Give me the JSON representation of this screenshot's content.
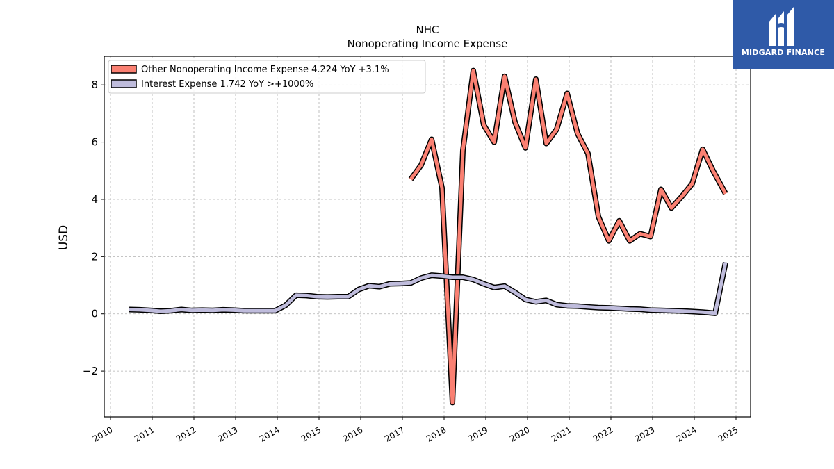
{
  "chart_data": {
    "type": "line",
    "title": "NHC",
    "subtitle": "Nonoperating Income Expense",
    "xlabel": "",
    "ylabel": "USD",
    "xlim": [
      2009.85,
      2025.35
    ],
    "ylim": [
      -3.6,
      9.0
    ],
    "yticks": [
      -2,
      0,
      2,
      4,
      6,
      8
    ],
    "xticks": [
      2010,
      2011,
      2012,
      2013,
      2014,
      2015,
      2016,
      2017,
      2018,
      2019,
      2020,
      2021,
      2022,
      2023,
      2024,
      2025
    ],
    "grid": true,
    "legend_position": "top-left",
    "series": [
      {
        "name": "Other Nonoperating Income Expense",
        "legend_label": "Other Nonoperating Income Expense  4.224 YoY +3.1%",
        "color": "#fa8072",
        "points": [
          [
            2017.2,
            4.7
          ],
          [
            2017.45,
            5.2
          ],
          [
            2017.7,
            6.1
          ],
          [
            2017.95,
            4.4
          ],
          [
            2018.2,
            -3.1
          ],
          [
            2018.45,
            5.7
          ],
          [
            2018.7,
            8.5
          ],
          [
            2018.95,
            6.6
          ],
          [
            2019.2,
            6.0
          ],
          [
            2019.45,
            8.3
          ],
          [
            2019.7,
            6.7
          ],
          [
            2019.95,
            5.8
          ],
          [
            2020.2,
            8.2
          ],
          [
            2020.45,
            5.95
          ],
          [
            2020.7,
            6.45
          ],
          [
            2020.95,
            7.7
          ],
          [
            2021.2,
            6.3
          ],
          [
            2021.45,
            5.6
          ],
          [
            2021.7,
            3.4
          ],
          [
            2021.95,
            2.55
          ],
          [
            2022.2,
            3.25
          ],
          [
            2022.45,
            2.55
          ],
          [
            2022.7,
            2.8
          ],
          [
            2022.95,
            2.7
          ],
          [
            2023.2,
            4.35
          ],
          [
            2023.45,
            3.7
          ],
          [
            2023.7,
            4.1
          ],
          [
            2023.95,
            4.55
          ],
          [
            2024.2,
            5.75
          ],
          [
            2024.45,
            5.0
          ],
          [
            2024.75,
            4.2
          ]
        ]
      },
      {
        "name": "Interest Expense",
        "legend_label": "Interest Expense  1.742 YoY >+1000%",
        "color": "#bfbcdc",
        "points": [
          [
            2010.45,
            0.15
          ],
          [
            2010.7,
            0.14
          ],
          [
            2010.95,
            0.12
          ],
          [
            2011.2,
            0.09
          ],
          [
            2011.45,
            0.11
          ],
          [
            2011.7,
            0.15
          ],
          [
            2011.95,
            0.12
          ],
          [
            2012.2,
            0.13
          ],
          [
            2012.45,
            0.12
          ],
          [
            2012.7,
            0.14
          ],
          [
            2012.95,
            0.13
          ],
          [
            2013.2,
            0.11
          ],
          [
            2013.45,
            0.11
          ],
          [
            2013.7,
            0.11
          ],
          [
            2013.95,
            0.11
          ],
          [
            2014.2,
            0.3
          ],
          [
            2014.45,
            0.65
          ],
          [
            2014.7,
            0.64
          ],
          [
            2014.95,
            0.6
          ],
          [
            2015.2,
            0.59
          ],
          [
            2015.45,
            0.6
          ],
          [
            2015.7,
            0.6
          ],
          [
            2015.95,
            0.85
          ],
          [
            2016.2,
            0.98
          ],
          [
            2016.45,
            0.95
          ],
          [
            2016.7,
            1.05
          ],
          [
            2016.95,
            1.06
          ],
          [
            2017.2,
            1.08
          ],
          [
            2017.45,
            1.25
          ],
          [
            2017.7,
            1.35
          ],
          [
            2017.95,
            1.32
          ],
          [
            2018.2,
            1.28
          ],
          [
            2018.45,
            1.28
          ],
          [
            2018.7,
            1.2
          ],
          [
            2018.95,
            1.05
          ],
          [
            2019.2,
            0.92
          ],
          [
            2019.45,
            0.97
          ],
          [
            2019.7,
            0.75
          ],
          [
            2019.95,
            0.5
          ],
          [
            2020.2,
            0.42
          ],
          [
            2020.45,
            0.47
          ],
          [
            2020.7,
            0.32
          ],
          [
            2020.95,
            0.28
          ],
          [
            2021.2,
            0.27
          ],
          [
            2021.45,
            0.24
          ],
          [
            2021.7,
            0.22
          ],
          [
            2021.95,
            0.21
          ],
          [
            2022.2,
            0.19
          ],
          [
            2022.45,
            0.17
          ],
          [
            2022.7,
            0.16
          ],
          [
            2022.95,
            0.13
          ],
          [
            2023.2,
            0.12
          ],
          [
            2023.45,
            0.11
          ],
          [
            2023.7,
            0.1
          ],
          [
            2023.95,
            0.08
          ],
          [
            2024.2,
            0.06
          ],
          [
            2024.5,
            0.02
          ],
          [
            2024.75,
            1.8
          ]
        ]
      }
    ]
  },
  "branding": {
    "logo_text": "MIDGARD FINANCE",
    "logo_bg": "#2f5aa8"
  }
}
